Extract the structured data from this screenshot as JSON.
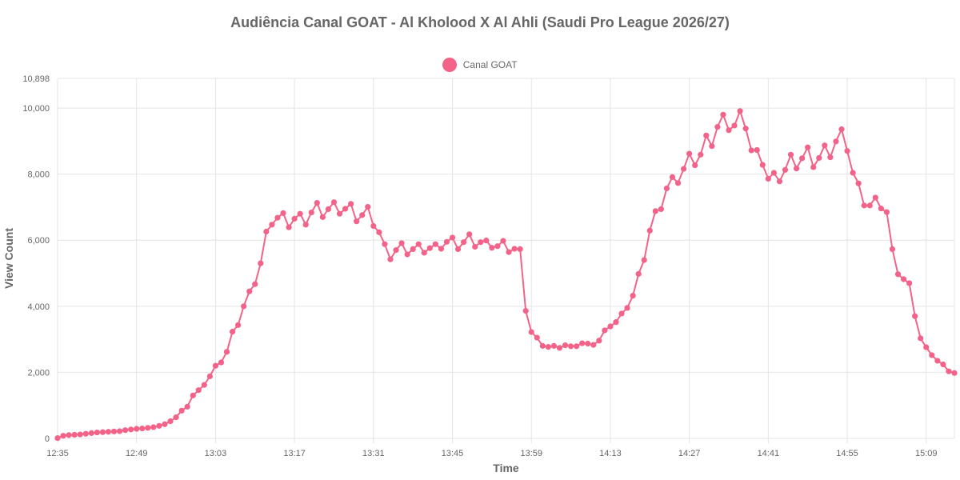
{
  "chart_data": {
    "type": "line",
    "title": "Audiência Canal GOAT - Al Kholood X Al Ahli (Saudi Pro League 2026/27)",
    "xlabel": "Time",
    "ylabel": "View Count",
    "ylim": [
      0,
      10898
    ],
    "y_ticks": [
      "0",
      "2,000",
      "4,000",
      "6,000",
      "8,000",
      "10,000",
      "10,898"
    ],
    "y_tick_values": [
      0,
      2000,
      4000,
      6000,
      8000,
      10000,
      10898
    ],
    "x_tick_labels": [
      "12:35",
      "12:49",
      "13:03",
      "13:17",
      "13:31",
      "13:45",
      "13:59",
      "14:13",
      "14:27",
      "14:41",
      "14:55",
      "15:09"
    ],
    "x_tick_index": [
      0,
      14,
      28,
      42,
      56,
      70,
      84,
      98,
      112,
      126,
      140,
      154
    ],
    "grid": true,
    "legend_position": "top-center",
    "series": [
      {
        "name": "Canal GOAT",
        "color": "#f36389",
        "values": [
          10,
          80,
          100,
          110,
          120,
          140,
          160,
          180,
          190,
          200,
          210,
          220,
          250,
          270,
          290,
          300,
          320,
          340,
          380,
          430,
          520,
          640,
          840,
          960,
          1300,
          1460,
          1620,
          1880,
          2200,
          2300,
          2620,
          3230,
          3430,
          4000,
          4450,
          4670,
          5300,
          6260,
          6470,
          6680,
          6820,
          6390,
          6650,
          6800,
          6470,
          6840,
          7130,
          6700,
          6940,
          7150,
          6800,
          6950,
          7100,
          6570,
          6760,
          7010,
          6430,
          6240,
          5880,
          5420,
          5700,
          5910,
          5570,
          5730,
          5880,
          5620,
          5760,
          5880,
          5740,
          5950,
          6080,
          5730,
          5940,
          6180,
          5800,
          5940,
          5990,
          5770,
          5820,
          5980,
          5640,
          5740,
          5730,
          3860,
          3220,
          3050,
          2800,
          2770,
          2800,
          2740,
          2820,
          2790,
          2790,
          2880,
          2870,
          2830,
          2960,
          3270,
          3390,
          3520,
          3780,
          3950,
          4320,
          4980,
          5400,
          6290,
          6880,
          6940,
          7570,
          7910,
          7730,
          8160,
          8620,
          8270,
          8590,
          9170,
          8850,
          9430,
          9800,
          9330,
          9470,
          9910,
          9380,
          8720,
          8730,
          8280,
          7860,
          8040,
          7780,
          8130,
          8590,
          8170,
          8480,
          8810,
          8210,
          8490,
          8870,
          8510,
          8990,
          9360,
          8700,
          8040,
          7720,
          7050,
          7050,
          7290,
          6960,
          6850,
          5730,
          4970,
          4820,
          4700,
          3700,
          3030,
          2760,
          2520,
          2350,
          2240,
          2030,
          1980
        ]
      }
    ]
  }
}
